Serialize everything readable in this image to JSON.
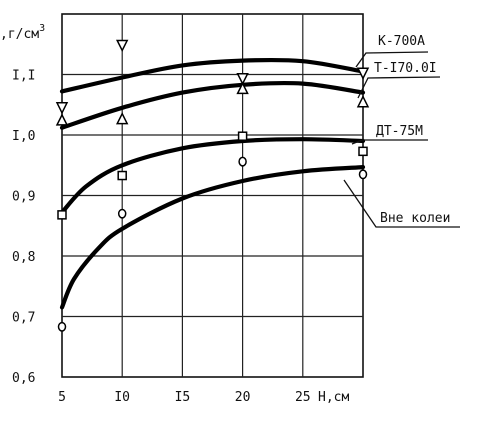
{
  "chart_data": {
    "type": "line",
    "ylabel": ",г/см",
    "ylabel_sup": "3",
    "xlabel": "H,см",
    "xlim": [
      5,
      30
    ],
    "ylim": [
      0.6,
      1.2
    ],
    "x_ticks": [
      {
        "value": 5,
        "label": "5"
      },
      {
        "value": 10,
        "label": "I0"
      },
      {
        "value": 15,
        "label": "I5"
      },
      {
        "value": 20,
        "label": "20"
      },
      {
        "value": 25,
        "label": "25"
      }
    ],
    "y_ticks": [
      {
        "value": 0.6,
        "label": "0,6"
      },
      {
        "value": 0.7,
        "label": "0,7"
      },
      {
        "value": 0.8,
        "label": "0,8"
      },
      {
        "value": 0.9,
        "label": "0,9"
      },
      {
        "value": 1.0,
        "label": "I,0"
      },
      {
        "value": 1.1,
        "label": "I,I"
      }
    ],
    "grid": true,
    "series": [
      {
        "name": "К-700А",
        "marker": "triangle-down",
        "curve": [
          [
            5,
            1.072
          ],
          [
            10,
            1.095
          ],
          [
            15,
            1.115
          ],
          [
            20,
            1.123
          ],
          [
            25,
            1.122
          ],
          [
            30,
            1.105
          ]
        ],
        "points": [
          [
            5,
            1.045
          ],
          [
            10,
            1.148
          ],
          [
            20,
            1.093
          ],
          [
            30,
            1.102
          ]
        ]
      },
      {
        "name": "Т-I70.0I",
        "marker": "triangle-up",
        "curve": [
          [
            5,
            1.012
          ],
          [
            10,
            1.045
          ],
          [
            15,
            1.07
          ],
          [
            20,
            1.083
          ],
          [
            25,
            1.085
          ],
          [
            30,
            1.07
          ]
        ],
        "points": [
          [
            5,
            1.025
          ],
          [
            10,
            1.027
          ],
          [
            20,
            1.077
          ],
          [
            30,
            1.055
          ]
        ]
      },
      {
        "name": "ДТ-75М",
        "marker": "square",
        "curve": [
          [
            5,
            0.872
          ],
          [
            7,
            0.915
          ],
          [
            10,
            0.95
          ],
          [
            15,
            0.978
          ],
          [
            20,
            0.99
          ],
          [
            25,
            0.993
          ],
          [
            30,
            0.99
          ]
        ],
        "points": [
          [
            5,
            0.868
          ],
          [
            10,
            0.933
          ],
          [
            20,
            0.998
          ],
          [
            30,
            0.973
          ]
        ]
      },
      {
        "name": "Вне колеи",
        "marker": "circle",
        "curve": [
          [
            5,
            0.715
          ],
          [
            6,
            0.762
          ],
          [
            8,
            0.812
          ],
          [
            10,
            0.845
          ],
          [
            15,
            0.895
          ],
          [
            20,
            0.924
          ],
          [
            25,
            0.94
          ],
          [
            30,
            0.947
          ]
        ],
        "points": [
          [
            5,
            0.683
          ],
          [
            10,
            0.87
          ],
          [
            20,
            0.956
          ],
          [
            30,
            0.935
          ]
        ]
      }
    ]
  }
}
